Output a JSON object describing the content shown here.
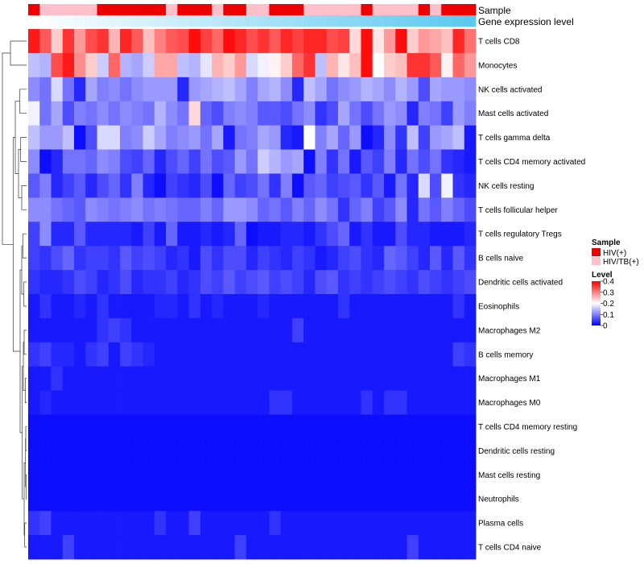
{
  "chart_data": {
    "type": "heatmap",
    "title": "",
    "annotations": {
      "sample_label": "Sample",
      "gene_label": "Gene expression level"
    },
    "sample_groups": [
      "HIV(+)",
      "HIV/TB(+)"
    ],
    "sample_colors": {
      "HIV(+)": "#ee0000",
      "HIV/TB(+)": "#ffc0cb"
    },
    "sample_annotation": [
      0,
      1,
      1,
      1,
      1,
      1,
      0,
      0,
      0,
      0,
      0,
      0,
      1,
      0,
      0,
      0,
      1,
      0,
      0,
      1,
      1,
      0,
      0,
      0,
      1,
      1,
      1,
      1,
      1,
      0,
      1,
      1,
      1,
      1,
      0,
      1,
      0,
      0,
      0
    ],
    "gene_expression_gradient": [
      "#ffffff",
      "#5bc8f0"
    ],
    "rows": [
      "T cells CD8",
      "Monocytes",
      "NK cells activated",
      "Mast cells activated",
      "T cells gamma delta",
      "T cells CD4 memory activated",
      "NK cells resting",
      "T cells follicular helper",
      "T cells regulatory  Tregs",
      "B cells naive",
      "Dendritic cells activated",
      "Eosinophils",
      "Macrophages M2",
      "B cells memory",
      "Macrophages M1",
      "Macrophages M0",
      "T cells CD4 memory resting",
      "Dendritic cells resting",
      "Mast cells resting",
      "Neutrophils",
      "Plasma cells",
      "T cells CD4 naive"
    ],
    "values": [
      [
        0.38,
        0.33,
        0.24,
        0.36,
        0.28,
        0.34,
        0.36,
        0.26,
        0.37,
        0.33,
        0.25,
        0.3,
        0.33,
        0.34,
        0.39,
        0.35,
        0.32,
        0.39,
        0.37,
        0.34,
        0.36,
        0.33,
        0.37,
        0.35,
        0.37,
        0.37,
        0.34,
        0.35,
        0.23,
        0.39,
        0.22,
        0.28,
        0.39,
        0.24,
        0.28,
        0.27,
        0.25,
        0.37,
        0.31
      ],
      [
        0.15,
        0.14,
        0.34,
        0.38,
        0.29,
        0.24,
        0.16,
        0.32,
        0.14,
        0.13,
        0.16,
        0.27,
        0.27,
        0.15,
        0.14,
        0.18,
        0.26,
        0.24,
        0.28,
        0.17,
        0.19,
        0.21,
        0.24,
        0.32,
        0.36,
        0.15,
        0.26,
        0.22,
        0.25,
        0.39,
        0.2,
        0.24,
        0.25,
        0.36,
        0.36,
        0.33,
        0.21,
        0.32,
        0.28
      ],
      [
        0.11,
        0.09,
        0.17,
        0.09,
        0.03,
        0.13,
        0.1,
        0.11,
        0.09,
        0.11,
        0.12,
        0.12,
        0.12,
        0.03,
        0.12,
        0.13,
        0.14,
        0.15,
        0.13,
        0.1,
        0.13,
        0.14,
        0.11,
        0.03,
        0.15,
        0.13,
        0.09,
        0.11,
        0.12,
        0.14,
        0.13,
        0.11,
        0.14,
        0.12,
        0.06,
        0.13,
        0.12,
        0.12,
        0.11
      ],
      [
        0.19,
        0.09,
        0.13,
        0.06,
        0.1,
        0.09,
        0.11,
        0.09,
        0.11,
        0.1,
        0.09,
        0.14,
        0.11,
        0.09,
        0.23,
        0.08,
        0.06,
        0.1,
        0.11,
        0.1,
        0.07,
        0.07,
        0.06,
        0.09,
        0.11,
        0.04,
        0.06,
        0.13,
        0.09,
        0.06,
        0.09,
        0.12,
        0.11,
        0.03,
        0.1,
        0.09,
        0.05,
        0.12,
        0.1
      ],
      [
        0.15,
        0.12,
        0.12,
        0.15,
        0.01,
        0.06,
        0.17,
        0.17,
        0.1,
        0.11,
        0.16,
        0.13,
        0.1,
        0.11,
        0.12,
        0.09,
        0.13,
        0.02,
        0.09,
        0.1,
        0.13,
        0.12,
        0.03,
        0.02,
        0.2,
        0.1,
        0.13,
        0.08,
        0.12,
        0.01,
        0.03,
        0.11,
        0.04,
        0.15,
        0.05,
        0.12,
        0.13,
        0.15,
        0.02
      ],
      [
        0.11,
        0.01,
        0.03,
        0.09,
        0.09,
        0.08,
        0.11,
        0.1,
        0.06,
        0.05,
        0.08,
        0.03,
        0.06,
        0.08,
        0.05,
        0.09,
        0.06,
        0.07,
        0.12,
        0.09,
        0.16,
        0.14,
        0.12,
        0.13,
        0.01,
        0.1,
        0.04,
        0.09,
        0.02,
        0.07,
        0.05,
        0.1,
        0.03,
        0.09,
        0.06,
        0.09,
        0.04,
        0.03,
        0.02
      ],
      [
        0.07,
        0.1,
        0.03,
        0.05,
        0.07,
        0.03,
        0.06,
        0.08,
        0.04,
        0.1,
        0.03,
        0.01,
        0.05,
        0.04,
        0.03,
        0.06,
        0.01,
        0.08,
        0.05,
        0.06,
        0.09,
        0.04,
        0.1,
        0.01,
        0.07,
        0.08,
        0.05,
        0.06,
        0.07,
        0.04,
        0.07,
        0.02,
        0.09,
        0.03,
        0.17,
        0.06,
        0.19,
        0.04,
        0.03
      ],
      [
        0.11,
        0.11,
        0.09,
        0.08,
        0.07,
        0.11,
        0.1,
        0.09,
        0.1,
        0.11,
        0.09,
        0.1,
        0.09,
        0.08,
        0.08,
        0.1,
        0.08,
        0.12,
        0.12,
        0.11,
        0.08,
        0.09,
        0.07,
        0.1,
        0.08,
        0.11,
        0.09,
        0.04,
        0.08,
        0.1,
        0.05,
        0.07,
        0.11,
        0.03,
        0.09,
        0.07,
        0.1,
        0.08,
        0.06
      ],
      [
        0.05,
        0.11,
        0.03,
        0.03,
        0.07,
        0.03,
        0.03,
        0.03,
        0.03,
        0.02,
        0.05,
        0.02,
        0.08,
        0.02,
        0.02,
        0.03,
        0.02,
        0.03,
        0.08,
        0.01,
        0.02,
        0.02,
        0.03,
        0.03,
        0.02,
        0.04,
        0.06,
        0.08,
        0.02,
        0.04,
        0.02,
        0.02,
        0.06,
        0.03,
        0.03,
        0.02,
        0.02,
        0.02,
        0.03
      ],
      [
        0.05,
        0.04,
        0.06,
        0.08,
        0.04,
        0.05,
        0.05,
        0.04,
        0.07,
        0.05,
        0.06,
        0.05,
        0.03,
        0.04,
        0.02,
        0.06,
        0.04,
        0.06,
        0.06,
        0.03,
        0.05,
        0.04,
        0.03,
        0.05,
        0.04,
        0.02,
        0.03,
        0.05,
        0.06,
        0.04,
        0.03,
        0.08,
        0.07,
        0.05,
        0.03,
        0.07,
        0.03,
        0.07,
        0.04
      ],
      [
        0.04,
        0.03,
        0.03,
        0.04,
        0.06,
        0.05,
        0.03,
        0.04,
        0.06,
        0.03,
        0.04,
        0.04,
        0.05,
        0.03,
        0.04,
        0.06,
        0.05,
        0.07,
        0.05,
        0.06,
        0.07,
        0.05,
        0.06,
        0.05,
        0.03,
        0.06,
        0.07,
        0.04,
        0.05,
        0.04,
        0.05,
        0.06,
        0.05,
        0.04,
        0.06,
        0.05,
        0.04,
        0.05,
        0.06
      ],
      [
        0.02,
        0.04,
        0.02,
        0.02,
        0.03,
        0.02,
        0.04,
        0.02,
        0.02,
        0.02,
        0.02,
        0.03,
        0.03,
        0.02,
        0.04,
        0.02,
        0.03,
        0.02,
        0.02,
        0.02,
        0.03,
        0.02,
        0.02,
        0.02,
        0.02,
        0.02,
        0.02,
        0.04,
        0.02,
        0.02,
        0.02,
        0.02,
        0.02,
        0.02,
        0.02,
        0.02,
        0.02,
        0.04,
        0.02
      ],
      [
        0.02,
        0.02,
        0.02,
        0.02,
        0.02,
        0.02,
        0.04,
        0.05,
        0.04,
        0.02,
        0.02,
        0.02,
        0.02,
        0.02,
        0.02,
        0.02,
        0.02,
        0.02,
        0.02,
        0.02,
        0.02,
        0.02,
        0.02,
        0.05,
        0.02,
        0.02,
        0.02,
        0.02,
        0.02,
        0.02,
        0.02,
        0.02,
        0.02,
        0.02,
        0.02,
        0.02,
        0.02,
        0.02,
        0.02
      ],
      [
        0.04,
        0.05,
        0.03,
        0.03,
        0.02,
        0.04,
        0.05,
        0.02,
        0.05,
        0.04,
        0.03,
        0.02,
        0.02,
        0.02,
        0.02,
        0.02,
        0.02,
        0.02,
        0.02,
        0.02,
        0.02,
        0.02,
        0.02,
        0.02,
        0.02,
        0.02,
        0.02,
        0.02,
        0.02,
        0.02,
        0.02,
        0.02,
        0.02,
        0.02,
        0.02,
        0.02,
        0.02,
        0.05,
        0.04
      ],
      [
        0.02,
        0.02,
        0.04,
        0.02,
        0.02,
        0.02,
        0.02,
        0.02,
        0.02,
        0.02,
        0.02,
        0.02,
        0.02,
        0.02,
        0.02,
        0.02,
        0.02,
        0.02,
        0.02,
        0.02,
        0.02,
        0.02,
        0.02,
        0.02,
        0.02,
        0.02,
        0.02,
        0.02,
        0.02,
        0.02,
        0.02,
        0.02,
        0.02,
        0.02,
        0.02,
        0.02,
        0.02,
        0.02,
        0.02
      ],
      [
        0.02,
        0.03,
        0.02,
        0.02,
        0.02,
        0.02,
        0.02,
        0.02,
        0.02,
        0.02,
        0.02,
        0.02,
        0.02,
        0.02,
        0.02,
        0.02,
        0.02,
        0.02,
        0.02,
        0.02,
        0.02,
        0.04,
        0.04,
        0.02,
        0.02,
        0.02,
        0.02,
        0.02,
        0.02,
        0.04,
        0.02,
        0.04,
        0.04,
        0.02,
        0.02,
        0.02,
        0.02,
        0.02,
        0.02
      ],
      [
        0.01,
        0.01,
        0.01,
        0.01,
        0.01,
        0.01,
        0.01,
        0.01,
        0.01,
        0.01,
        0.01,
        0.01,
        0.01,
        0.01,
        0.01,
        0.01,
        0.01,
        0.01,
        0.01,
        0.01,
        0.01,
        0.01,
        0.01,
        0.01,
        0.01,
        0.01,
        0.01,
        0.01,
        0.01,
        0.01,
        0.01,
        0.01,
        0.01,
        0.01,
        0.01,
        0.01,
        0.01,
        0.01,
        0.01
      ],
      [
        0.01,
        0.01,
        0.01,
        0.01,
        0.01,
        0.01,
        0.01,
        0.01,
        0.01,
        0.01,
        0.01,
        0.01,
        0.01,
        0.01,
        0.01,
        0.01,
        0.01,
        0.01,
        0.01,
        0.01,
        0.01,
        0.01,
        0.01,
        0.01,
        0.01,
        0.01,
        0.01,
        0.01,
        0.01,
        0.01,
        0.01,
        0.01,
        0.01,
        0.01,
        0.01,
        0.01,
        0.01,
        0.01,
        0.01
      ],
      [
        0.01,
        0.01,
        0.01,
        0.01,
        0.01,
        0.01,
        0.01,
        0.01,
        0.01,
        0.01,
        0.01,
        0.01,
        0.01,
        0.01,
        0.01,
        0.01,
        0.01,
        0.01,
        0.01,
        0.01,
        0.01,
        0.01,
        0.01,
        0.01,
        0.01,
        0.01,
        0.01,
        0.01,
        0.01,
        0.01,
        0.01,
        0.01,
        0.01,
        0.01,
        0.01,
        0.01,
        0.01,
        0.01,
        0.01
      ],
      [
        0.01,
        0.01,
        0.01,
        0.01,
        0.01,
        0.01,
        0.01,
        0.01,
        0.01,
        0.01,
        0.01,
        0.01,
        0.01,
        0.01,
        0.01,
        0.01,
        0.01,
        0.01,
        0.01,
        0.01,
        0.01,
        0.01,
        0.01,
        0.01,
        0.01,
        0.01,
        0.01,
        0.01,
        0.01,
        0.01,
        0.01,
        0.01,
        0.01,
        0.01,
        0.01,
        0.01,
        0.01,
        0.01,
        0.01
      ],
      [
        0.04,
        0.05,
        0.02,
        0.02,
        0.02,
        0.02,
        0.02,
        0.02,
        0.02,
        0.02,
        0.02,
        0.04,
        0.02,
        0.02,
        0.05,
        0.02,
        0.02,
        0.02,
        0.02,
        0.02,
        0.02,
        0.04,
        0.02,
        0.02,
        0.02,
        0.02,
        0.02,
        0.02,
        0.02,
        0.02,
        0.02,
        0.02,
        0.02,
        0.02,
        0.02,
        0.02,
        0.02,
        0.02,
        0.02
      ],
      [
        0.02,
        0.02,
        0.02,
        0.05,
        0.02,
        0.02,
        0.02,
        0.02,
        0.02,
        0.02,
        0.02,
        0.02,
        0.02,
        0.02,
        0.02,
        0.02,
        0.02,
        0.02,
        0.05,
        0.02,
        0.02,
        0.02,
        0.02,
        0.02,
        0.02,
        0.02,
        0.02,
        0.02,
        0.02,
        0.02,
        0.02,
        0.02,
        0.02,
        0.05,
        0.02,
        0.02,
        0.02,
        0.02,
        0.02
      ]
    ],
    "color_scale": {
      "title": "Level",
      "min": 0,
      "max": 0.4,
      "colors": [
        "#0000ff",
        "#ffffff",
        "#ff0000"
      ],
      "tick_values": [
        0.4,
        0.3,
        0.2,
        0.1,
        0
      ],
      "tick_labels": [
        "0.4",
        "0.3",
        "0.2",
        "0.1",
        "0"
      ]
    },
    "legend": {
      "title": "Sample",
      "entries": [
        "HIV(+)",
        "HIV/TB(+)"
      ],
      "placement": "right"
    },
    "row_dendrogram": {
      "order_note": "left-side hierarchical clustering of rows",
      "nodes": [
        {
          "a": 0,
          "b": 1,
          "h": 0.6
        },
        {
          "a": 2,
          "b": 3,
          "h": 0.25
        },
        {
          "a": 4,
          "b": 5,
          "h": 0.22
        },
        {
          "a": 6,
          "b": 7,
          "h": 0.18
        },
        {
          "a": "n2",
          "b": "n3",
          "h": 0.3
        },
        {
          "a": "n1",
          "b": "n4",
          "h": 0.42
        },
        {
          "a": 8,
          "b": 9,
          "h": 0.14
        },
        {
          "a": 10,
          "b": 11,
          "h": 0.1
        },
        {
          "a": "n6",
          "b": "n7",
          "h": 0.18
        },
        {
          "a": 12,
          "b": 13,
          "h": 0.09
        },
        {
          "a": 14,
          "b": 15,
          "h": 0.05
        },
        {
          "a": "n9",
          "b": "n10",
          "h": 0.12
        },
        {
          "a": 16,
          "b": 17,
          "h": 0.03
        },
        {
          "a": 18,
          "b": 19,
          "h": 0.02
        },
        {
          "a": "n12",
          "b": "n13",
          "h": 0.04
        },
        {
          "a": 20,
          "b": 21,
          "h": 0.07
        },
        {
          "a": "n14",
          "b": "n15",
          "h": 0.09
        },
        {
          "a": "n11",
          "b": "n16",
          "h": 0.16
        },
        {
          "a": "n8",
          "b": "n17",
          "h": 0.24
        },
        {
          "a": "n5",
          "b": "n18",
          "h": 0.5
        },
        {
          "a": "n0",
          "b": "n19",
          "h": 0.9
        }
      ]
    }
  }
}
